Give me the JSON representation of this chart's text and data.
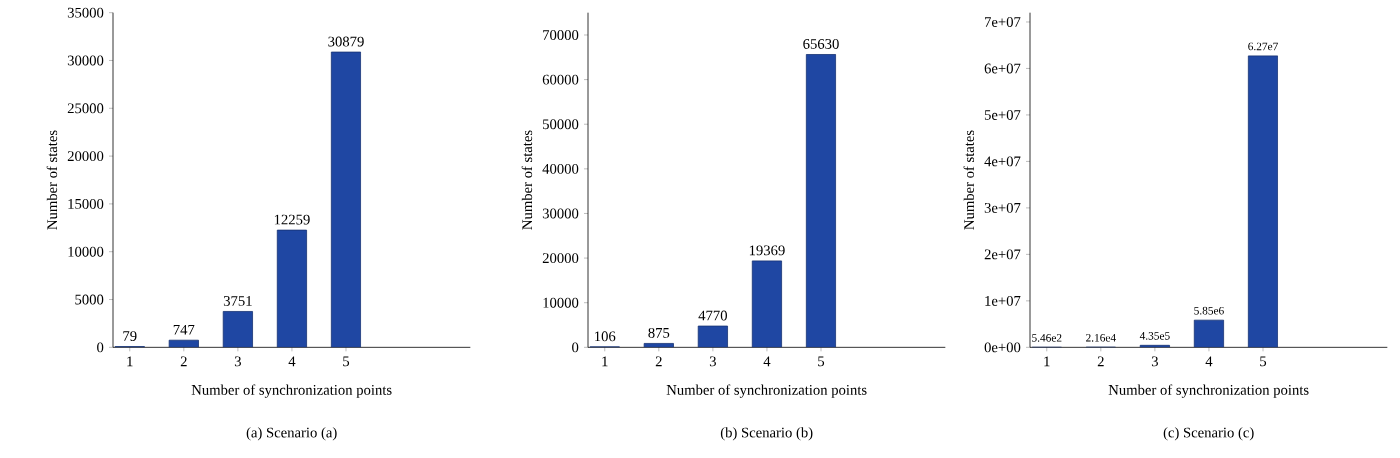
{
  "chart_data": [
    {
      "type": "bar",
      "title": "(a)  Scenario (a)",
      "xlabel": "Number of synchronization points",
      "ylabel": "Number of states",
      "categories": [
        "1",
        "2",
        "3",
        "4",
        "5"
      ],
      "values": [
        79,
        747,
        3751,
        12259,
        30879
      ],
      "color": "#1f47a3",
      "ylim": [
        0,
        35000
      ],
      "yticks": [
        0,
        5000,
        10000,
        15000,
        20000,
        25000,
        30000,
        35000
      ],
      "data_labels": true
    },
    {
      "type": "bar",
      "title": "(b)  Scenario (b)",
      "xlabel": "Number of synchronization points",
      "ylabel": "Number of states",
      "categories": [
        "1",
        "2",
        "3",
        "4",
        "5"
      ],
      "values": [
        106,
        875,
        4770,
        19369,
        65630
      ],
      "color": "#1f47a3",
      "ylim": [
        0,
        75000
      ],
      "yticks": [
        0,
        10000,
        20000,
        30000,
        40000,
        50000,
        60000,
        70000
      ],
      "data_labels": true
    },
    {
      "type": "bar",
      "title": "(c)  Scenario (c)",
      "xlabel": "Number of synchronization points",
      "ylabel": "Number of states",
      "categories": [
        "1",
        "2",
        "3",
        "4",
        "5"
      ],
      "values": [
        546,
        21600,
        435000,
        5850000,
        62700000
      ],
      "value_labels": [
        "5.46e2",
        "2.16e4",
        "4.35e5",
        "5.85e6",
        "6.27e7"
      ],
      "color": "#1f47a3",
      "ylim": [
        0,
        72000000
      ],
      "yticks": [
        {
          "value": 0,
          "label": "0e+00"
        },
        {
          "value": 10000000,
          "label": "1e+07"
        },
        {
          "value": 20000000,
          "label": "2e+07"
        },
        {
          "value": 30000000,
          "label": "3e+07"
        },
        {
          "value": 40000000,
          "label": "4e+07"
        },
        {
          "value": 50000000,
          "label": "5e+07"
        },
        {
          "value": 60000000,
          "label": "6e+07"
        },
        {
          "value": 70000000,
          "label": "7e+07"
        }
      ]
    }
  ]
}
